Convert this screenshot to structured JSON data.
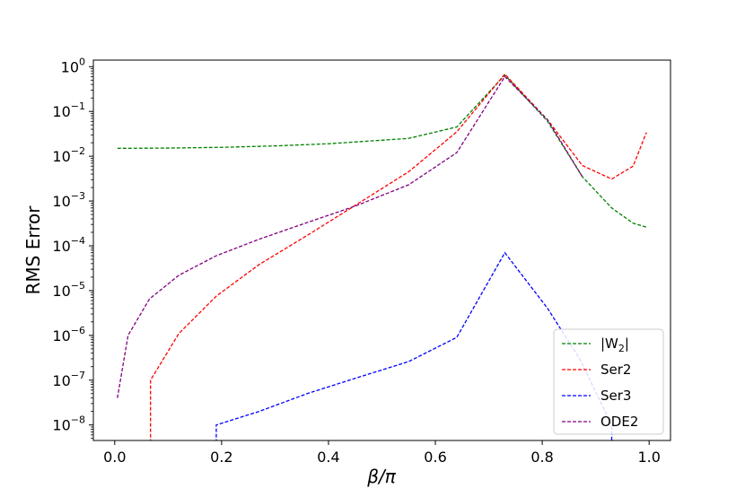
{
  "chart_data": {
    "type": "line",
    "xlabel": "β/π",
    "ylabel": "RMS Error",
    "yscale": "log",
    "xlim": [
      -0.04,
      1.04
    ],
    "ylim": [
      4.5e-09,
      1.4
    ],
    "x_ticks": [
      0.0,
      0.2,
      0.4,
      0.6,
      0.8,
      1.0
    ],
    "x_tick_labels": [
      "0.0",
      "0.2",
      "0.4",
      "0.6",
      "0.8",
      "1.0"
    ],
    "y_ticks": [
      1e-08,
      1e-07,
      1e-06,
      1e-05,
      0.0001,
      0.001,
      0.01,
      0.1,
      1
    ],
    "y_tick_labels": [
      {
        "base": "10",
        "exp": "−8"
      },
      {
        "base": "10",
        "exp": "−7"
      },
      {
        "base": "10",
        "exp": "−6"
      },
      {
        "base": "10",
        "exp": "−5"
      },
      {
        "base": "10",
        "exp": "−4"
      },
      {
        "base": "10",
        "exp": "−3"
      },
      {
        "base": "10",
        "exp": "−2"
      },
      {
        "base": "10",
        "exp": "−1"
      },
      {
        "base": "10",
        "exp": "0"
      }
    ],
    "grid": false,
    "legend_position": "lower-right",
    "line_style": "dashed",
    "series": [
      {
        "name": "|W2|",
        "legend_main": "|W",
        "legend_sub": "2",
        "legend_end": "|",
        "color": "#008000",
        "points": [
          [
            0.005,
            0.015
          ],
          [
            0.1,
            0.0152
          ],
          [
            0.2,
            0.0158
          ],
          [
            0.3,
            0.017
          ],
          [
            0.4,
            0.019
          ],
          [
            0.55,
            0.025
          ],
          [
            0.64,
            0.045
          ],
          [
            0.73,
            0.65
          ],
          [
            0.81,
            0.06
          ],
          [
            0.875,
            0.0035
          ],
          [
            0.93,
            0.0007
          ],
          [
            0.97,
            0.00032
          ],
          [
            0.995,
            0.00026
          ]
        ]
      },
      {
        "name": "Ser2",
        "color": "#ff0000",
        "points": [
          [
            0.067,
            1e-09
          ],
          [
            0.067,
            1e-07
          ],
          [
            0.12,
            1.1e-06
          ],
          [
            0.19,
            7.5e-06
          ],
          [
            0.27,
            3.8e-05
          ],
          [
            0.36,
            0.00017
          ],
          [
            0.45,
            0.0008
          ],
          [
            0.55,
            0.0045
          ],
          [
            0.64,
            0.035
          ],
          [
            0.73,
            0.68
          ],
          [
            0.81,
            0.065
          ],
          [
            0.875,
            0.0062
          ],
          [
            0.93,
            0.0031
          ],
          [
            0.97,
            0.006
          ],
          [
            0.995,
            0.034
          ]
        ]
      },
      {
        "name": "Ser3",
        "color": "#0000ff",
        "points": [
          [
            0.19,
            1e-09
          ],
          [
            0.19,
            1e-08
          ],
          [
            0.27,
            2e-08
          ],
          [
            0.36,
            5e-08
          ],
          [
            0.45,
            1.1e-07
          ],
          [
            0.55,
            2.6e-07
          ],
          [
            0.64,
            9e-07
          ],
          [
            0.73,
            7e-05
          ],
          [
            0.81,
            4e-06
          ],
          [
            0.87,
            3e-07
          ],
          [
            0.93,
            1e-08
          ],
          [
            0.93,
            1e-09
          ]
        ]
      },
      {
        "name": "ODE2",
        "color": "#800080",
        "points": [
          [
            0.005,
            4e-08
          ],
          [
            0.025,
            1e-06
          ],
          [
            0.065,
            6.5e-06
          ],
          [
            0.12,
            2.2e-05
          ],
          [
            0.19,
            6e-05
          ],
          [
            0.27,
            0.00014
          ],
          [
            0.36,
            0.00033
          ],
          [
            0.45,
            0.00077
          ],
          [
            0.55,
            0.0023
          ],
          [
            0.64,
            0.012
          ],
          [
            0.73,
            0.6
          ],
          [
            0.81,
            0.065
          ],
          [
            0.875,
            0.0035
          ]
        ]
      }
    ]
  }
}
